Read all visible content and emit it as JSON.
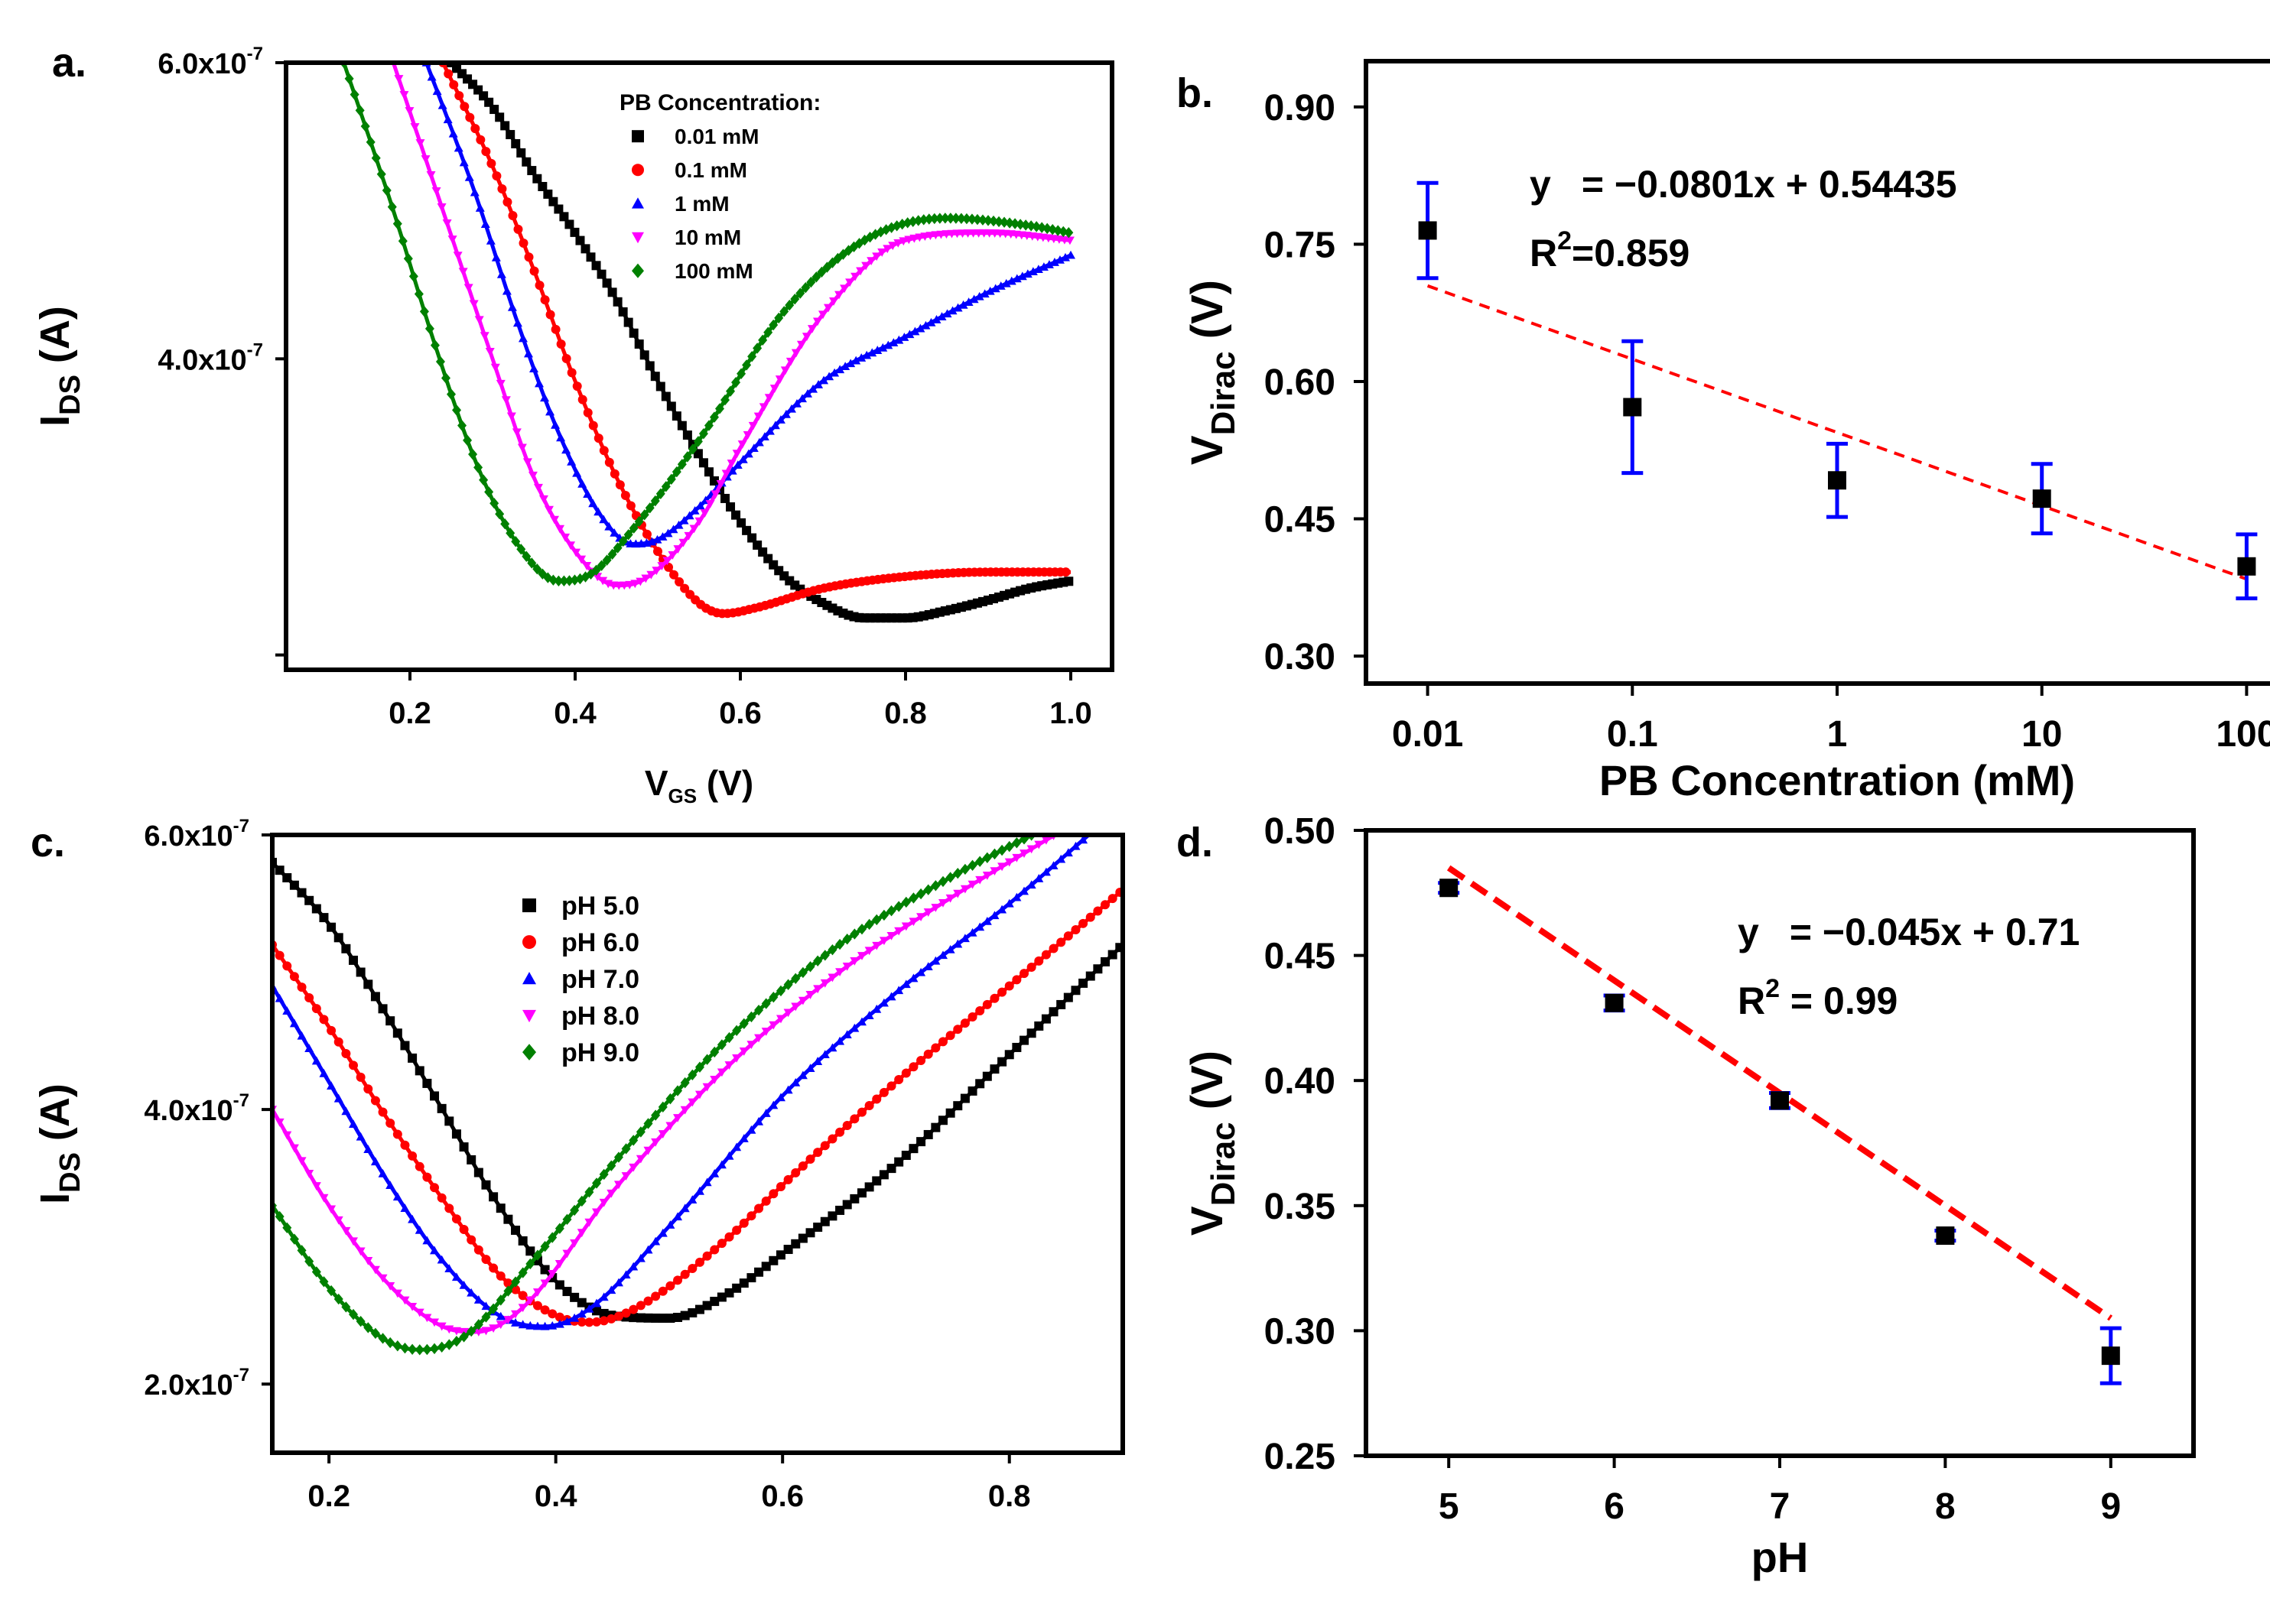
{
  "chart_data": [
    {
      "panel": "a",
      "panel_label": "a.",
      "type": "line",
      "title": "",
      "xlabel": "V",
      "xlabel_sub": "GS",
      "xlabel_unit": "(V)",
      "ylabel": "I",
      "ylabel_sub": "DS",
      "ylabel_unit": "(A)",
      "xlim": [
        0.05,
        1.05
      ],
      "ylim": [
        1.9e-07,
        6e-07
      ],
      "xticks": [
        "0.2",
        "0.4",
        "0.6",
        "0.8",
        "1.0"
      ],
      "yticks": [
        {
          "mantissa": "4.0x10",
          "exp": "-7"
        },
        {
          "mantissa": "6.0x10",
          "exp": "-7"
        }
      ],
      "yticks_unlabeled": [
        2e-07
      ],
      "legend": {
        "title": "PB Concentration:",
        "placement": "top-right"
      },
      "series": [
        {
          "name": "0.01 mM",
          "color": "#000000",
          "marker": "square",
          "points": [
            [
              0.25,
              6.0
            ],
            [
              0.3,
              5.7
            ],
            [
              0.35,
              5.25
            ],
            [
              0.4,
              4.85
            ],
            [
              0.45,
              4.4
            ],
            [
              0.5,
              3.85
            ],
            [
              0.55,
              3.35
            ],
            [
              0.6,
              2.9
            ],
            [
              0.65,
              2.55
            ],
            [
              0.7,
              2.35
            ],
            [
              0.75,
              2.25
            ],
            [
              0.8,
              2.25
            ],
            [
              0.85,
              2.3
            ],
            [
              0.9,
              2.37
            ],
            [
              0.95,
              2.45
            ],
            [
              1.0,
              2.5
            ]
          ]
        },
        {
          "name": "0.1 mM",
          "color": "#ff0000",
          "marker": "circle",
          "points": [
            [
              0.24,
              6.0
            ],
            [
              0.3,
              5.3
            ],
            [
              0.35,
              4.6
            ],
            [
              0.4,
              3.85
            ],
            [
              0.45,
              3.2
            ],
            [
              0.5,
              2.7
            ],
            [
              0.55,
              2.35
            ],
            [
              0.58,
              2.28
            ],
            [
              0.62,
              2.32
            ],
            [
              0.7,
              2.45
            ],
            [
              0.8,
              2.53
            ],
            [
              0.9,
              2.56
            ],
            [
              1.0,
              2.56
            ]
          ]
        },
        {
          "name": "1 mM",
          "color": "#0000ff",
          "marker": "triangle-up",
          "points": [
            [
              0.22,
              6.0
            ],
            [
              0.28,
              5.1
            ],
            [
              0.33,
              4.25
            ],
            [
              0.38,
              3.5
            ],
            [
              0.43,
              2.95
            ],
            [
              0.47,
              2.75
            ],
            [
              0.5,
              2.78
            ],
            [
              0.55,
              3.0
            ],
            [
              0.6,
              3.3
            ],
            [
              0.7,
              3.85
            ],
            [
              0.8,
              4.15
            ],
            [
              0.9,
              4.45
            ],
            [
              1.0,
              4.7
            ]
          ]
        },
        {
          "name": "10 mM",
          "color": "#ff00ff",
          "marker": "triangle-down",
          "points": [
            [
              0.18,
              6.0
            ],
            [
              0.24,
              5.0
            ],
            [
              0.3,
              4.0
            ],
            [
              0.35,
              3.2
            ],
            [
              0.4,
              2.7
            ],
            [
              0.45,
              2.47
            ],
            [
              0.48,
              2.5
            ],
            [
              0.55,
              2.9
            ],
            [
              0.6,
              3.4
            ],
            [
              0.7,
              4.3
            ],
            [
              0.8,
              4.8
            ],
            [
              0.9,
              4.85
            ],
            [
              1.0,
              4.8
            ]
          ]
        },
        {
          "name": "100 mM",
          "color": "#008000",
          "marker": "diamond",
          "points": [
            [
              0.12,
              6.0
            ],
            [
              0.18,
              5.0
            ],
            [
              0.23,
              4.1
            ],
            [
              0.28,
              3.3
            ],
            [
              0.33,
              2.75
            ],
            [
              0.38,
              2.5
            ],
            [
              0.42,
              2.55
            ],
            [
              0.47,
              2.85
            ],
            [
              0.55,
              3.45
            ],
            [
              0.65,
              4.3
            ],
            [
              0.75,
              4.8
            ],
            [
              0.85,
              4.95
            ],
            [
              0.95,
              4.9
            ],
            [
              1.0,
              4.85
            ]
          ]
        }
      ]
    },
    {
      "panel": "b",
      "panel_label": "b.",
      "type": "scatter",
      "title": "",
      "xlabel": "PB  Concentration (mM)",
      "ylabel": "V",
      "ylabel_sub": "Dirac",
      "ylabel_unit": "(V)",
      "xscale": "log",
      "xlim": [
        0.005,
        200
      ],
      "ylim": [
        0.27,
        0.95
      ],
      "xticks": [
        "0.01",
        "0.1",
        "1",
        "10",
        "100"
      ],
      "yticks": [
        "0.30",
        "0.45",
        "0.60",
        "0.75",
        "0.90"
      ],
      "x": [
        0.01,
        0.1,
        1,
        10,
        100
      ],
      "y": [
        0.765,
        0.572,
        0.492,
        0.472,
        0.398
      ],
      "yerr": [
        0.052,
        0.072,
        0.04,
        0.038,
        0.035
      ],
      "fit": {
        "slope": -0.0801,
        "intercept": 0.54435,
        "equation_lhs": "y",
        "equation_rhs": "= −0.0801x + 0.54435",
        "r2_prefix": "R",
        "r2_exp": "2",
        "r2_value": "=0.859"
      },
      "marker_color": "#000000",
      "errorbar_color": "#0000ff",
      "fit_color": "#ff0000"
    },
    {
      "panel": "c",
      "panel_label": "c.",
      "type": "line",
      "title": "",
      "xlabel": "",
      "ylabel": "I",
      "ylabel_sub": "DS",
      "ylabel_unit": "(A)",
      "xlim": [
        0.15,
        0.9
      ],
      "ylim": [
        1.5e-07,
        6e-07
      ],
      "xticks": [
        "0.2",
        "0.4",
        "0.6",
        "0.8"
      ],
      "yticks": [
        {
          "mantissa": "2.0x10",
          "exp": "-7"
        },
        {
          "mantissa": "4.0x10",
          "exp": "-7"
        },
        {
          "mantissa": "6.0x10",
          "exp": "-7"
        }
      ],
      "legend": {
        "title": "",
        "placement": "top-left"
      },
      "series": [
        {
          "name": "pH 5.0",
          "color": "#000000",
          "marker": "square",
          "points": [
            [
              0.15,
              5.8
            ],
            [
              0.2,
              5.35
            ],
            [
              0.25,
              4.7
            ],
            [
              0.3,
              4.0
            ],
            [
              0.35,
              3.3
            ],
            [
              0.4,
              2.75
            ],
            [
              0.45,
              2.5
            ],
            [
              0.5,
              2.48
            ],
            [
              0.55,
              2.65
            ],
            [
              0.6,
              2.95
            ],
            [
              0.7,
              3.6
            ],
            [
              0.8,
              4.4
            ],
            [
              0.9,
              5.2
            ]
          ]
        },
        {
          "name": "pH 6.0",
          "color": "#ff0000",
          "marker": "circle",
          "points": [
            [
              0.15,
              5.2
            ],
            [
              0.2,
              4.6
            ],
            [
              0.25,
              3.95
            ],
            [
              0.3,
              3.35
            ],
            [
              0.35,
              2.8
            ],
            [
              0.4,
              2.5
            ],
            [
              0.43,
              2.45
            ],
            [
              0.47,
              2.55
            ],
            [
              0.55,
              3.05
            ],
            [
              0.6,
              3.45
            ],
            [
              0.7,
              4.2
            ],
            [
              0.8,
              4.9
            ],
            [
              0.9,
              5.6
            ]
          ]
        },
        {
          "name": "pH 7.0",
          "color": "#0000ff",
          "marker": "triangle-up",
          "points": [
            [
              0.15,
              4.9
            ],
            [
              0.2,
              4.2
            ],
            [
              0.25,
              3.5
            ],
            [
              0.3,
              2.9
            ],
            [
              0.35,
              2.5
            ],
            [
              0.39,
              2.42
            ],
            [
              0.43,
              2.55
            ],
            [
              0.5,
              3.15
            ],
            [
              0.6,
              4.1
            ],
            [
              0.7,
              4.85
            ],
            [
              0.8,
              5.5
            ],
            [
              0.87,
              6.0
            ]
          ]
        },
        {
          "name": "pH 8.0",
          "color": "#ff00ff",
          "marker": "triangle-down",
          "points": [
            [
              0.15,
              4.0
            ],
            [
              0.2,
              3.3
            ],
            [
              0.25,
              2.75
            ],
            [
              0.3,
              2.42
            ],
            [
              0.33,
              2.38
            ],
            [
              0.37,
              2.55
            ],
            [
              0.45,
              3.4
            ],
            [
              0.55,
              4.3
            ],
            [
              0.65,
              5.0
            ],
            [
              0.75,
              5.55
            ],
            [
              0.84,
              6.0
            ]
          ]
        },
        {
          "name": "pH 9.0",
          "color": "#008000",
          "marker": "diamond",
          "points": [
            [
              0.15,
              3.3
            ],
            [
              0.2,
              2.7
            ],
            [
              0.25,
              2.32
            ],
            [
              0.28,
              2.25
            ],
            [
              0.32,
              2.35
            ],
            [
              0.38,
              2.9
            ],
            [
              0.45,
              3.6
            ],
            [
              0.55,
              4.5
            ],
            [
              0.65,
              5.2
            ],
            [
              0.75,
              5.7
            ],
            [
              0.82,
              6.0
            ]
          ]
        }
      ]
    },
    {
      "panel": "d",
      "panel_label": "d.",
      "type": "scatter",
      "title": "",
      "xlabel": "pH",
      "ylabel": "V",
      "ylabel_sub": "Dirac",
      "ylabel_unit": "(V)",
      "xlim": [
        4.5,
        9.5
      ],
      "ylim": [
        0.25,
        0.5
      ],
      "xticks": [
        "5",
        "6",
        "7",
        "8",
        "9"
      ],
      "yticks": [
        "0.25",
        "0.30",
        "0.35",
        "0.40",
        "0.45",
        "0.50"
      ],
      "x": [
        5,
        6,
        7,
        8,
        9
      ],
      "y": [
        0.477,
        0.431,
        0.392,
        0.338,
        0.29
      ],
      "yerr": [
        0.002,
        0.003,
        0.003,
        0.002,
        0.011
      ],
      "fit": {
        "slope": -0.045,
        "intercept": 0.71,
        "equation_lhs": "y",
        "equation_rhs": "= −0.045x + 0.71",
        "r2_prefix": "R",
        "r2_exp": "2",
        "r2_value": " = 0.99"
      },
      "marker_color": "#000000",
      "errorbar_color": "#0000ff",
      "fit_color": "#ff0000"
    }
  ]
}
